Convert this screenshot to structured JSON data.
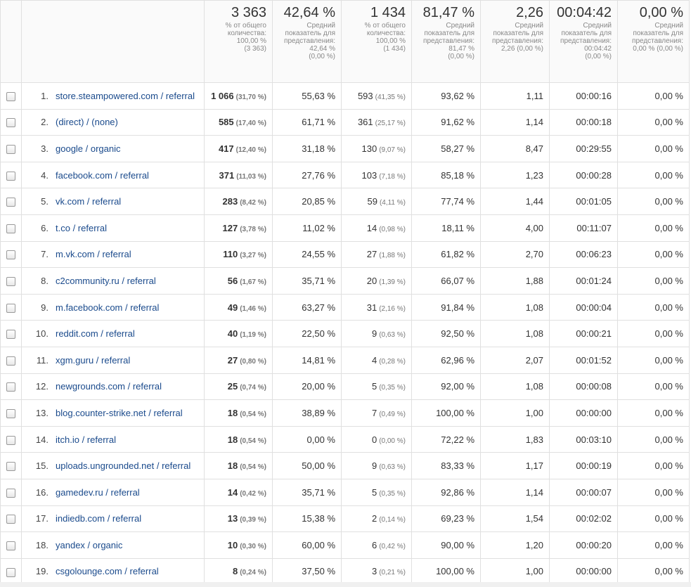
{
  "summary": [
    {
      "main": "3 363",
      "lines": [
        "% от общего",
        "количества:",
        "100,00 %",
        "(3 363)"
      ]
    },
    {
      "main": "42,64 %",
      "lines": [
        "Средний",
        "показатель для",
        "представления:",
        "42,64 %",
        "(0,00 %)"
      ]
    },
    {
      "main": "1 434",
      "lines": [
        "% от общего",
        "количества:",
        "100,00 %",
        "(1 434)"
      ]
    },
    {
      "main": "81,47 %",
      "lines": [
        "Средний",
        "показатель для",
        "представления:",
        "81,47 %",
        "(0,00 %)"
      ]
    },
    {
      "main": "2,26",
      "lines": [
        "Средний",
        "показатель для",
        "представления:",
        "2,26 (0,00 %)"
      ]
    },
    {
      "main": "00:04:42",
      "lines": [
        "Средний",
        "показатель для",
        "представления:",
        "00:04:42",
        "(0,00 %)"
      ]
    },
    {
      "main": "0,00 %",
      "lines": [
        "Средний",
        "показатель для",
        "представления:",
        "0,00 % (0,00 %)"
      ]
    }
  ],
  "rows": [
    {
      "num": "1.",
      "source": "store.steampowered.com / referral",
      "sessions": "1 066",
      "sessions_pct": "(31,70 %)",
      "new_pct": "55,63 %",
      "users": "593",
      "users_pct": "(41,35 %)",
      "bounce": "93,62 %",
      "pages": "1,11",
      "duration": "00:00:16",
      "conv": "0,00 %"
    },
    {
      "num": "2.",
      "source": "(direct) / (none)",
      "sessions": "585",
      "sessions_pct": "(17,40 %)",
      "new_pct": "61,71 %",
      "users": "361",
      "users_pct": "(25,17 %)",
      "bounce": "91,62 %",
      "pages": "1,14",
      "duration": "00:00:18",
      "conv": "0,00 %"
    },
    {
      "num": "3.",
      "source": "google / organic",
      "sessions": "417",
      "sessions_pct": "(12,40 %)",
      "new_pct": "31,18 %",
      "users": "130",
      "users_pct": "(9,07 %)",
      "bounce": "58,27 %",
      "pages": "8,47",
      "duration": "00:29:55",
      "conv": "0,00 %"
    },
    {
      "num": "4.",
      "source": "facebook.com / referral",
      "sessions": "371",
      "sessions_pct": "(11,03 %)",
      "new_pct": "27,76 %",
      "users": "103",
      "users_pct": "(7,18 %)",
      "bounce": "85,18 %",
      "pages": "1,23",
      "duration": "00:00:28",
      "conv": "0,00 %"
    },
    {
      "num": "5.",
      "source": "vk.com / referral",
      "sessions": "283",
      "sessions_pct": "(8,42 %)",
      "new_pct": "20,85 %",
      "users": "59",
      "users_pct": "(4,11 %)",
      "bounce": "77,74 %",
      "pages": "1,44",
      "duration": "00:01:05",
      "conv": "0,00 %"
    },
    {
      "num": "6.",
      "source": "t.co / referral",
      "sessions": "127",
      "sessions_pct": "(3,78 %)",
      "new_pct": "11,02 %",
      "users": "14",
      "users_pct": "(0,98 %)",
      "bounce": "18,11 %",
      "pages": "4,00",
      "duration": "00:11:07",
      "conv": "0,00 %"
    },
    {
      "num": "7.",
      "source": "m.vk.com / referral",
      "sessions": "110",
      "sessions_pct": "(3,27 %)",
      "new_pct": "24,55 %",
      "users": "27",
      "users_pct": "(1,88 %)",
      "bounce": "61,82 %",
      "pages": "2,70",
      "duration": "00:06:23",
      "conv": "0,00 %"
    },
    {
      "num": "8.",
      "source": "c2community.ru / referral",
      "sessions": "56",
      "sessions_pct": "(1,67 %)",
      "new_pct": "35,71 %",
      "users": "20",
      "users_pct": "(1,39 %)",
      "bounce": "66,07 %",
      "pages": "1,88",
      "duration": "00:01:24",
      "conv": "0,00 %"
    },
    {
      "num": "9.",
      "source": "m.facebook.com / referral",
      "sessions": "49",
      "sessions_pct": "(1,46 %)",
      "new_pct": "63,27 %",
      "users": "31",
      "users_pct": "(2,16 %)",
      "bounce": "91,84 %",
      "pages": "1,08",
      "duration": "00:00:04",
      "conv": "0,00 %"
    },
    {
      "num": "10.",
      "source": "reddit.com / referral",
      "sessions": "40",
      "sessions_pct": "(1,19 %)",
      "new_pct": "22,50 %",
      "users": "9",
      "users_pct": "(0,63 %)",
      "bounce": "92,50 %",
      "pages": "1,08",
      "duration": "00:00:21",
      "conv": "0,00 %"
    },
    {
      "num": "11.",
      "source": "xgm.guru / referral",
      "sessions": "27",
      "sessions_pct": "(0,80 %)",
      "new_pct": "14,81 %",
      "users": "4",
      "users_pct": "(0,28 %)",
      "bounce": "62,96 %",
      "pages": "2,07",
      "duration": "00:01:52",
      "conv": "0,00 %"
    },
    {
      "num": "12.",
      "source": "newgrounds.com / referral",
      "sessions": "25",
      "sessions_pct": "(0,74 %)",
      "new_pct": "20,00 %",
      "users": "5",
      "users_pct": "(0,35 %)",
      "bounce": "92,00 %",
      "pages": "1,08",
      "duration": "00:00:08",
      "conv": "0,00 %"
    },
    {
      "num": "13.",
      "source": "blog.counter-strike.net / referral",
      "sessions": "18",
      "sessions_pct": "(0,54 %)",
      "new_pct": "38,89 %",
      "users": "7",
      "users_pct": "(0,49 %)",
      "bounce": "100,00 %",
      "pages": "1,00",
      "duration": "00:00:00",
      "conv": "0,00 %"
    },
    {
      "num": "14.",
      "source": "itch.io / referral",
      "sessions": "18",
      "sessions_pct": "(0,54 %)",
      "new_pct": "0,00 %",
      "users": "0",
      "users_pct": "(0,00 %)",
      "bounce": "72,22 %",
      "pages": "1,83",
      "duration": "00:03:10",
      "conv": "0,00 %"
    },
    {
      "num": "15.",
      "source": "uploads.ungrounded.net / referral",
      "sessions": "18",
      "sessions_pct": "(0,54 %)",
      "new_pct": "50,00 %",
      "users": "9",
      "users_pct": "(0,63 %)",
      "bounce": "83,33 %",
      "pages": "1,17",
      "duration": "00:00:19",
      "conv": "0,00 %"
    },
    {
      "num": "16.",
      "source": "gamedev.ru / referral",
      "sessions": "14",
      "sessions_pct": "(0,42 %)",
      "new_pct": "35,71 %",
      "users": "5",
      "users_pct": "(0,35 %)",
      "bounce": "92,86 %",
      "pages": "1,14",
      "duration": "00:00:07",
      "conv": "0,00 %"
    },
    {
      "num": "17.",
      "source": "indiedb.com / referral",
      "sessions": "13",
      "sessions_pct": "(0,39 %)",
      "new_pct": "15,38 %",
      "users": "2",
      "users_pct": "(0,14 %)",
      "bounce": "69,23 %",
      "pages": "1,54",
      "duration": "00:02:02",
      "conv": "0,00 %"
    },
    {
      "num": "18.",
      "source": "yandex / organic",
      "sessions": "10",
      "sessions_pct": "(0,30 %)",
      "new_pct": "60,00 %",
      "users": "6",
      "users_pct": "(0,42 %)",
      "bounce": "90,00 %",
      "pages": "1,20",
      "duration": "00:00:20",
      "conv": "0,00 %"
    },
    {
      "num": "19.",
      "source": "csgolounge.com / referral",
      "sessions": "8",
      "sessions_pct": "(0,24 %)",
      "new_pct": "37,50 %",
      "users": "3",
      "users_pct": "(0,21 %)",
      "bounce": "100,00 %",
      "pages": "1,00",
      "duration": "00:00:00",
      "conv": "0,00 %"
    }
  ]
}
